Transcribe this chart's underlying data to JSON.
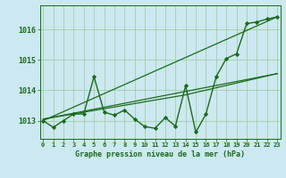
{
  "y_vals": [
    1013.0,
    1012.78,
    1013.0,
    1013.22,
    1013.22,
    1014.45,
    1013.28,
    1013.18,
    1013.35,
    1013.05,
    1012.8,
    1012.75,
    1013.1,
    1012.82,
    1014.15,
    1012.62,
    1013.22,
    1014.45,
    1015.05,
    1015.2,
    1016.2,
    1016.25,
    1016.35,
    1016.42
  ],
  "trend1_x": [
    0,
    23
  ],
  "trend1_y": [
    1013.0,
    1016.42
  ],
  "trend2_x": [
    0,
    23
  ],
  "trend2_y": [
    1013.05,
    1014.55
  ],
  "trend3_x": [
    0,
    14,
    23
  ],
  "trend3_y": [
    1013.05,
    1013.85,
    1014.55
  ],
  "line_color": "#1a6b1a",
  "bg_color": "#cce8f0",
  "grid_color": "#99cc99",
  "title": "Graphe pression niveau de la mer (hPa)",
  "xtick_labels": [
    "0",
    "1",
    "2",
    "3",
    "4",
    "5",
    "6",
    "7",
    "8",
    "9",
    "10",
    "11",
    "12",
    "13",
    "14",
    "15",
    "16",
    "17",
    "18",
    "19",
    "20",
    "21",
    "22",
    "23"
  ],
  "yticks": [
    1013,
    1014,
    1015,
    1016
  ],
  "ylim": [
    1012.4,
    1016.8
  ],
  "xlim": [
    -0.3,
    23.3
  ]
}
